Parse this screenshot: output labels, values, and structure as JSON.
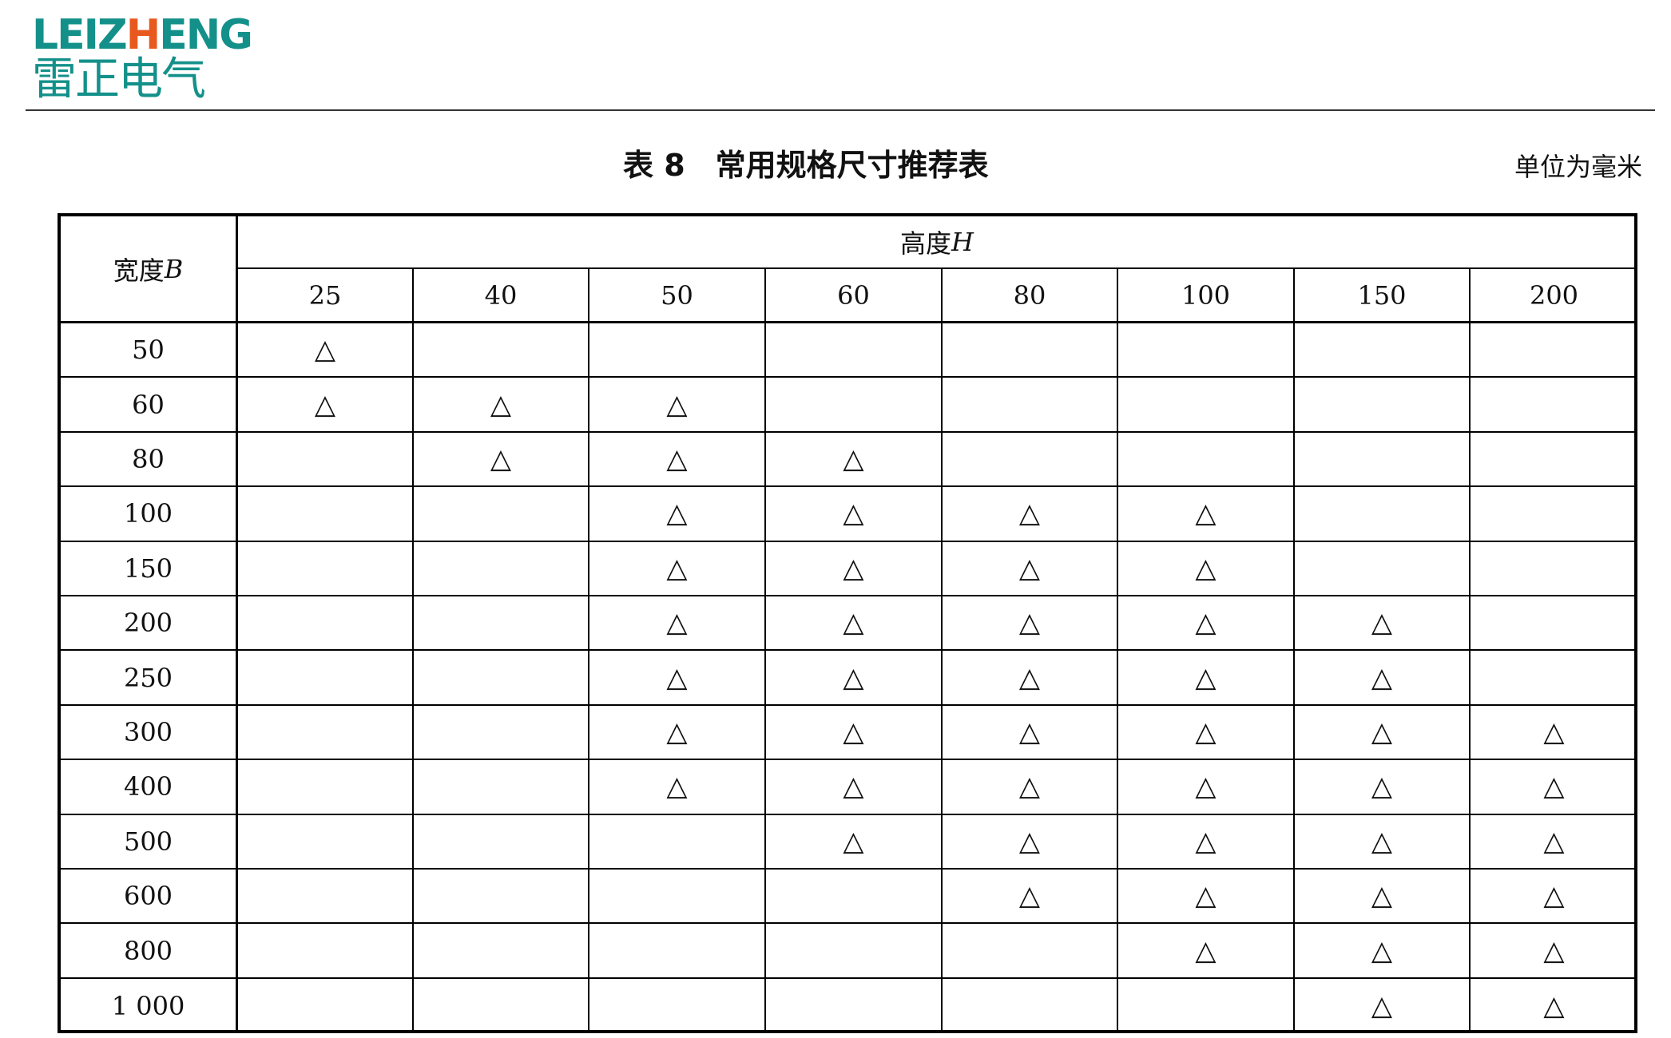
{
  "logo": {
    "text_en_prefix": "LEIZ",
    "text_en_accent": "H",
    "text_en_suffix": "ENG",
    "text_cn": "雷正电气",
    "brand_color": "#14908a",
    "accent_color": "#e8591f"
  },
  "title": "表 8　常用规格尺寸推荐表",
  "unit": "单位为毫米",
  "table": {
    "row_header": "宽度 B",
    "col_group_header": "高度 H",
    "columns": [
      "25",
      "40",
      "50",
      "60",
      "80",
      "100",
      "150",
      "200"
    ],
    "mark_symbol": "△",
    "rows": [
      {
        "width": "50",
        "marks": [
          1,
          0,
          0,
          0,
          0,
          0,
          0,
          0
        ]
      },
      {
        "width": "60",
        "marks": [
          1,
          1,
          1,
          0,
          0,
          0,
          0,
          0
        ]
      },
      {
        "width": "80",
        "marks": [
          0,
          1,
          1,
          1,
          0,
          0,
          0,
          0
        ]
      },
      {
        "width": "100",
        "marks": [
          0,
          0,
          1,
          1,
          1,
          1,
          0,
          0
        ]
      },
      {
        "width": "150",
        "marks": [
          0,
          0,
          1,
          1,
          1,
          1,
          0,
          0
        ]
      },
      {
        "width": "200",
        "marks": [
          0,
          0,
          1,
          1,
          1,
          1,
          1,
          0
        ]
      },
      {
        "width": "250",
        "marks": [
          0,
          0,
          1,
          1,
          1,
          1,
          1,
          0
        ]
      },
      {
        "width": "300",
        "marks": [
          0,
          0,
          1,
          1,
          1,
          1,
          1,
          1
        ]
      },
      {
        "width": "400",
        "marks": [
          0,
          0,
          1,
          1,
          1,
          1,
          1,
          1
        ]
      },
      {
        "width": "500",
        "marks": [
          0,
          0,
          0,
          1,
          1,
          1,
          1,
          1
        ]
      },
      {
        "width": "600",
        "marks": [
          0,
          0,
          0,
          0,
          1,
          1,
          1,
          1
        ]
      },
      {
        "width": "800",
        "marks": [
          0,
          0,
          0,
          0,
          0,
          1,
          1,
          1
        ]
      },
      {
        "width": "1 000",
        "marks": [
          0,
          0,
          0,
          0,
          0,
          0,
          1,
          1
        ]
      }
    ]
  }
}
